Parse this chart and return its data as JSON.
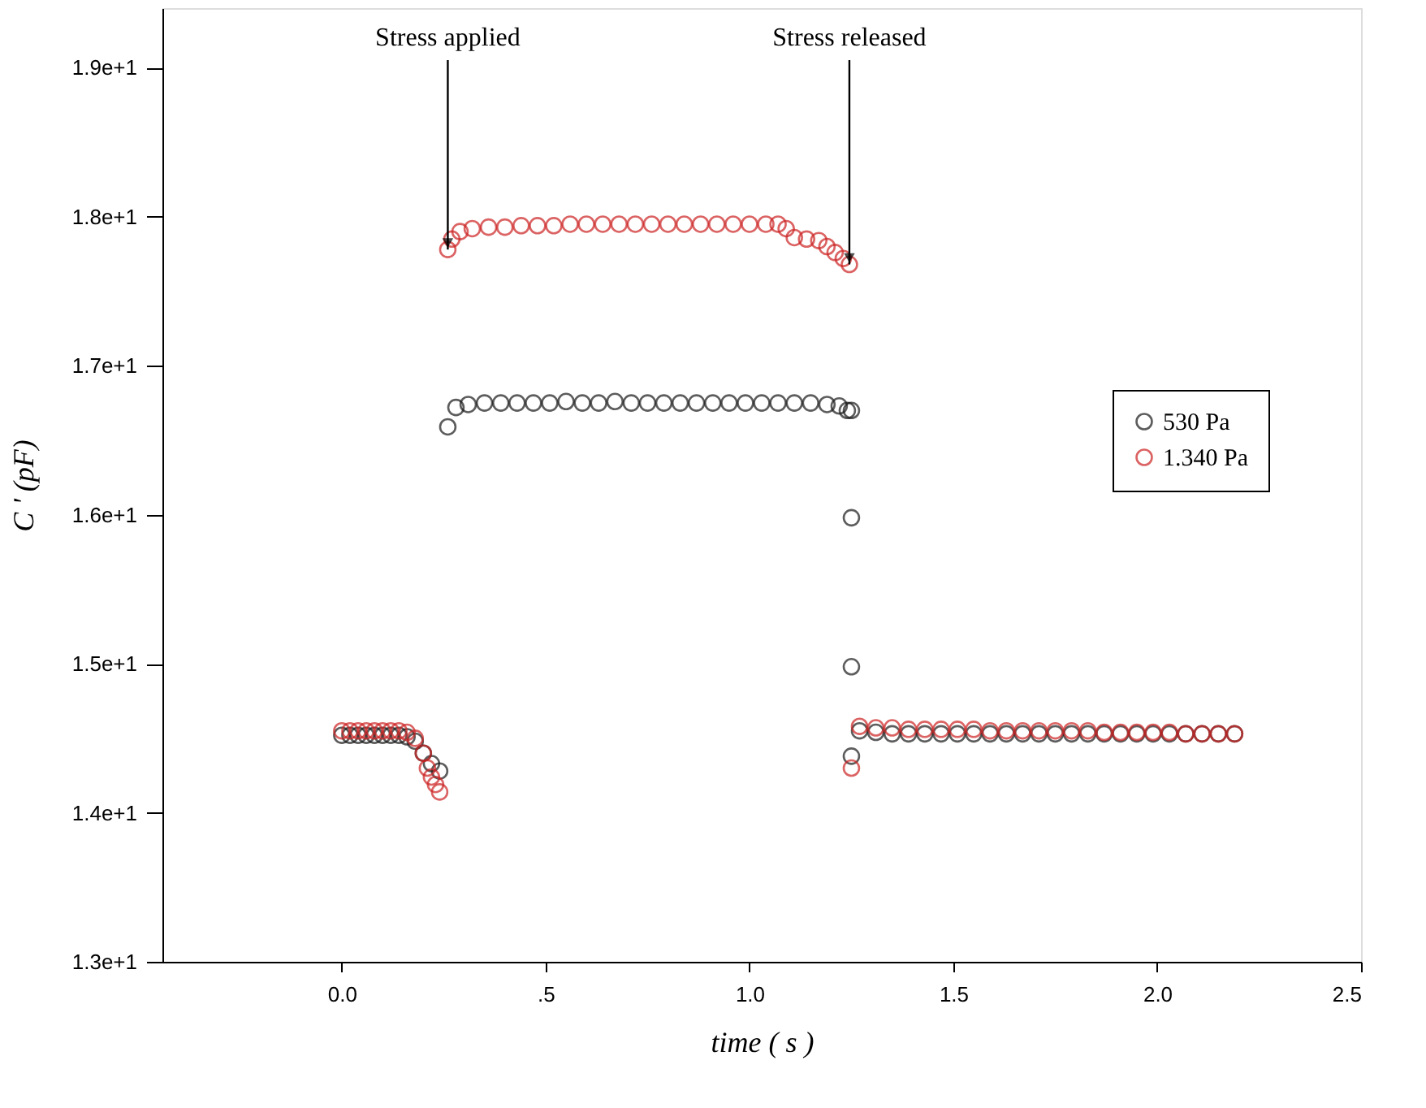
{
  "chart_data": {
    "type": "scatter",
    "xlabel": "time ( s )",
    "ylabel": "C ' (pF)",
    "xlim": [
      -0.44,
      2.5
    ],
    "ylim": [
      13,
      19.4
    ],
    "xticks": [
      {
        "value": 0,
        "label": "0.0"
      },
      {
        "value": 0.5,
        "label": ".5"
      },
      {
        "value": 1,
        "label": "1.0"
      },
      {
        "value": 1.5,
        "label": "1.5"
      },
      {
        "value": 2,
        "label": "2.0"
      },
      {
        "value": 2.5,
        "label": "2.5"
      }
    ],
    "yticks": [
      {
        "value": 13,
        "label": "1.3e+1"
      },
      {
        "value": 14,
        "label": "1.4e+1"
      },
      {
        "value": 15,
        "label": "1.5e+1"
      },
      {
        "value": 16,
        "label": "1.6e+1"
      },
      {
        "value": 17,
        "label": "1.7e+1"
      },
      {
        "value": 18,
        "label": "1.8e+1"
      },
      {
        "value": 19,
        "label": "1.9e+1"
      }
    ],
    "grid": false,
    "legend": "right",
    "marker": "circle",
    "annotations": [
      {
        "text": "Stress applied",
        "x": 0.26,
        "y": 17.78
      },
      {
        "text": "Stress released",
        "x": 1.245,
        "y": 17.68
      }
    ],
    "series": [
      {
        "name": "530 Pa",
        "color": "#1a1a1a",
        "x": [
          0.0,
          0.02,
          0.04,
          0.06,
          0.08,
          0.1,
          0.12,
          0.14,
          0.16,
          0.18,
          0.2,
          0.22,
          0.24,
          0.26,
          0.28,
          0.31,
          0.35,
          0.39,
          0.43,
          0.47,
          0.51,
          0.55,
          0.59,
          0.63,
          0.67,
          0.71,
          0.75,
          0.79,
          0.83,
          0.87,
          0.91,
          0.95,
          0.99,
          1.03,
          1.07,
          1.11,
          1.15,
          1.19,
          1.22,
          1.24,
          1.25,
          1.25,
          1.25,
          1.25,
          1.27,
          1.31,
          1.35,
          1.39,
          1.43,
          1.47,
          1.51,
          1.55,
          1.59,
          1.63,
          1.67,
          1.71,
          1.75,
          1.79,
          1.83,
          1.87,
          1.91,
          1.95,
          1.99,
          2.03,
          2.07,
          2.11,
          2.15,
          2.19
        ],
        "values": [
          14.52,
          14.52,
          14.52,
          14.52,
          14.52,
          14.52,
          14.52,
          14.52,
          14.51,
          14.48,
          14.4,
          14.33,
          14.28,
          16.59,
          16.72,
          16.74,
          16.75,
          16.75,
          16.75,
          16.75,
          16.75,
          16.76,
          16.75,
          16.75,
          16.76,
          16.75,
          16.75,
          16.75,
          16.75,
          16.75,
          16.75,
          16.75,
          16.75,
          16.75,
          16.75,
          16.75,
          16.75,
          16.74,
          16.73,
          16.7,
          16.7,
          15.98,
          14.98,
          14.38,
          14.55,
          14.54,
          14.53,
          14.53,
          14.53,
          14.53,
          14.53,
          14.53,
          14.53,
          14.53,
          14.53,
          14.53,
          14.53,
          14.53,
          14.53,
          14.53,
          14.53,
          14.53,
          14.53,
          14.53,
          14.53,
          14.53,
          14.53,
          14.53
        ]
      },
      {
        "name": "1.340 Pa",
        "color": "#cc2222",
        "x": [
          0.0,
          0.02,
          0.04,
          0.06,
          0.08,
          0.1,
          0.12,
          0.14,
          0.16,
          0.18,
          0.2,
          0.21,
          0.22,
          0.23,
          0.24,
          0.26,
          0.27,
          0.29,
          0.32,
          0.36,
          0.4,
          0.44,
          0.48,
          0.52,
          0.56,
          0.6,
          0.64,
          0.68,
          0.72,
          0.76,
          0.8,
          0.84,
          0.88,
          0.92,
          0.96,
          1.0,
          1.04,
          1.07,
          1.09,
          1.11,
          1.14,
          1.17,
          1.19,
          1.21,
          1.23,
          1.245,
          1.25,
          1.27,
          1.31,
          1.35,
          1.39,
          1.43,
          1.47,
          1.51,
          1.55,
          1.59,
          1.63,
          1.67,
          1.71,
          1.75,
          1.79,
          1.83,
          1.87,
          1.91,
          1.95,
          1.99,
          2.03,
          2.07,
          2.11,
          2.15,
          2.19
        ],
        "values": [
          14.55,
          14.55,
          14.55,
          14.55,
          14.55,
          14.55,
          14.55,
          14.55,
          14.54,
          14.5,
          14.4,
          14.3,
          14.24,
          14.19,
          14.14,
          17.78,
          17.85,
          17.9,
          17.92,
          17.93,
          17.93,
          17.94,
          17.94,
          17.94,
          17.95,
          17.95,
          17.95,
          17.95,
          17.95,
          17.95,
          17.95,
          17.95,
          17.95,
          17.95,
          17.95,
          17.95,
          17.95,
          17.95,
          17.92,
          17.86,
          17.85,
          17.84,
          17.8,
          17.76,
          17.72,
          17.68,
          14.3,
          14.58,
          14.57,
          14.57,
          14.56,
          14.56,
          14.56,
          14.56,
          14.56,
          14.55,
          14.55,
          14.55,
          14.55,
          14.55,
          14.55,
          14.55,
          14.54,
          14.54,
          14.54,
          14.54,
          14.54,
          14.53,
          14.53,
          14.53,
          14.53
        ]
      }
    ]
  }
}
